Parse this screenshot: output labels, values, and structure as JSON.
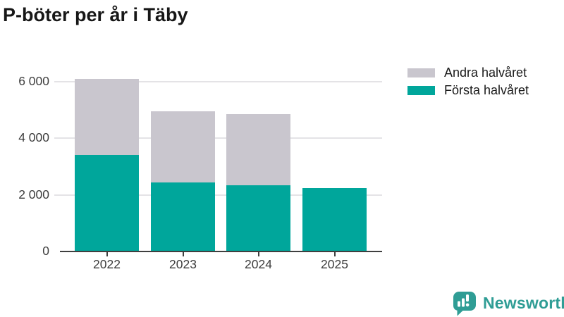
{
  "title": "P-böter per år i Täby",
  "colors": {
    "first_half_teal": "#00a69b",
    "second_half_gray": "#c9c6ce",
    "axis": "#3f3f3f",
    "grid": "#e4e3e6",
    "tick_text": "#3d3d3d",
    "title_text": "#171717",
    "legend_text": "#1a1a1a",
    "logo_teal": "#2f9d95"
  },
  "legend": {
    "items": [
      {
        "label": "Andra halvåret",
        "color": "#c9c6ce"
      },
      {
        "label": "Första halvåret",
        "color": "#00a69b"
      }
    ]
  },
  "chart_data": {
    "type": "bar",
    "stacked": true,
    "title": "P-böter per år i Täby",
    "xlabel": "",
    "ylabel": "",
    "categories": [
      "2022",
      "2023",
      "2024",
      "2025"
    ],
    "series": [
      {
        "name": "Första halvåret",
        "color": "#00a69b",
        "values": [
          3400,
          2450,
          2350,
          2250
        ]
      },
      {
        "name": "Andra halvåret",
        "color": "#c9c6ce",
        "values": [
          2700,
          2500,
          2500,
          0
        ]
      }
    ],
    "totals": [
      6100,
      4950,
      4850,
      2250
    ],
    "ylim": [
      0,
      6500
    ],
    "yticks": [
      {
        "value": 0,
        "label": "0"
      },
      {
        "value": 2000,
        "label": "2 000"
      },
      {
        "value": 4000,
        "label": "4 000"
      },
      {
        "value": 6000,
        "label": "6 000"
      }
    ],
    "grid": "horizontal",
    "legend_position": "top-right"
  },
  "branding": {
    "logo_text": "Newsworthy",
    "logo_icon": "bar-chart-speech-bubble-icon"
  }
}
